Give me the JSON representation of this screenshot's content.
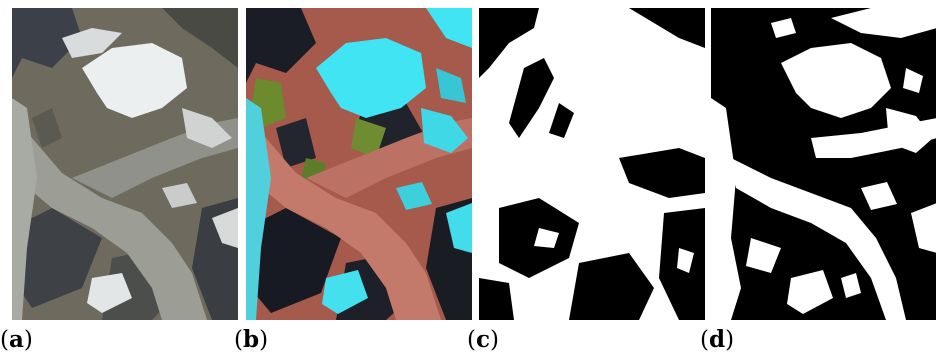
{
  "figure": {
    "panels": [
      {
        "id": "a",
        "caption": "a",
        "kind": "true-color satellite image of glacier"
      },
      {
        "id": "b",
        "caption": "b",
        "kind": "false-color composite (cyan snow/ice, red rock, green vegetation)"
      },
      {
        "id": "c",
        "caption": "c",
        "kind": "binary mask, coarse"
      },
      {
        "id": "d",
        "caption": "d",
        "kind": "binary mask, detailed"
      }
    ],
    "colors": {
      "snow_true": "#eceff0",
      "rock_true": "#6f6b5c",
      "glacier_true": "#9a9c94",
      "ice_false": "#41e4f2",
      "rock_false": "#b9685a",
      "veg_false": "#6c8a2e",
      "shadow": "#141820",
      "mask_white": "#ffffff",
      "mask_black": "#000000"
    }
  }
}
